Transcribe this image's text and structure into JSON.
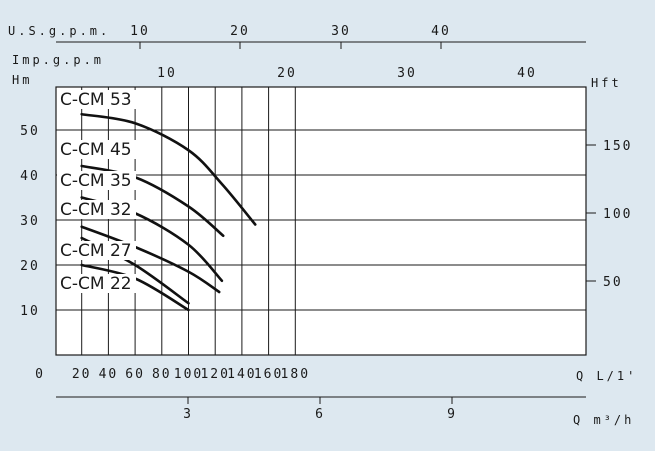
{
  "chart_data": {
    "type": "line",
    "colors": {
      "background": "#dde8f0",
      "plot_background": "#ffffff",
      "line": "#111111"
    },
    "grid": true,
    "axes": {
      "x_primary": {
        "label": "Q L/1'",
        "ticks": [
          "0",
          "20",
          "40",
          "60",
          "80",
          "100",
          "120",
          "140",
          "160",
          "180"
        ],
        "range": [
          0,
          190
        ]
      },
      "x_m3h": {
        "label": "Q m³/h",
        "ticks": [
          "3",
          "6",
          "9"
        ]
      },
      "x_usgpm": {
        "label": "U.S.g.p.m.",
        "ticks": [
          "10",
          "20",
          "30",
          "40"
        ]
      },
      "x_impgpm": {
        "label": "Imp.g.p.m",
        "ticks": [
          "10",
          "20",
          "30",
          "40"
        ]
      },
      "y_left": {
        "label": "Hm",
        "ticks": [
          "10",
          "20",
          "30",
          "40",
          "50"
        ],
        "range": [
          0,
          60
        ]
      },
      "y_right": {
        "label": "Hft",
        "ticks": [
          "50",
          "100",
          "150"
        ]
      }
    },
    "series": [
      {
        "name": "C-CM 53",
        "x": [
          20,
          60,
          100,
          125,
          150
        ],
        "y": [
          53.5,
          51.5,
          45.5,
          38,
          29
        ]
      },
      {
        "name": "C-CM 45",
        "x": [
          20,
          60,
          100,
          126
        ],
        "y": [
          42,
          39.5,
          33,
          26.5
        ]
      },
      {
        "name": "C-CM 35",
        "x": [
          20,
          60,
          100,
          125
        ],
        "y": [
          35,
          31.5,
          24.5,
          16.5
        ]
      },
      {
        "name": "C-CM 32",
        "x": [
          20,
          60,
          100,
          123
        ],
        "y": [
          28.5,
          24,
          18.5,
          14
        ]
      },
      {
        "name": "C-CM 27",
        "x": [
          20,
          60,
          100
        ],
        "y": [
          26,
          20,
          11.5
        ]
      },
      {
        "name": "C-CM 22",
        "x": [
          20,
          60,
          100
        ],
        "y": [
          20,
          17,
          10
        ]
      }
    ]
  }
}
